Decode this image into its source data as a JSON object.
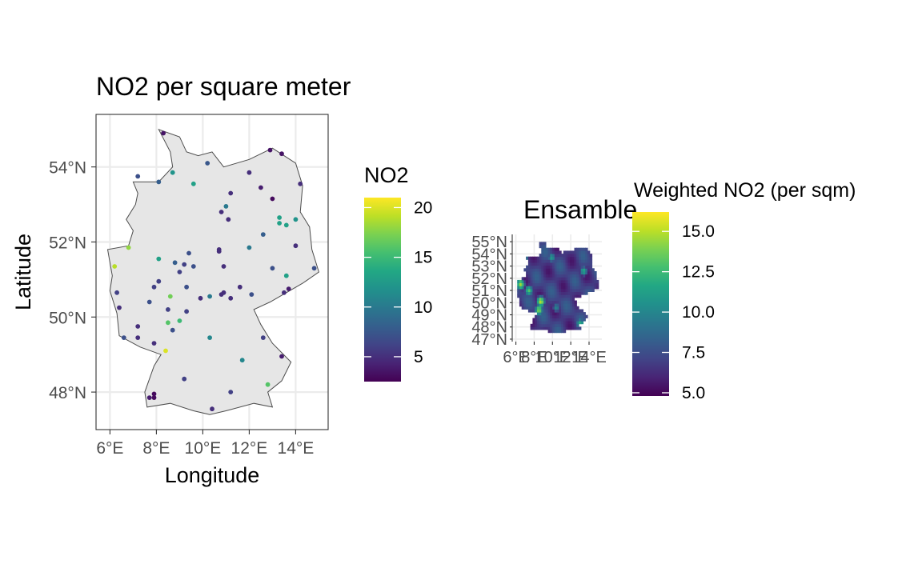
{
  "chart_data": [
    {
      "type": "scatter",
      "title": "NO2 per square meter",
      "xlabel": "Longitude",
      "ylabel": "Latitude",
      "xlim": [
        5.4,
        15.4
      ],
      "ylim": [
        47.0,
        55.4
      ],
      "grid": true,
      "x_ticks": [
        {
          "v": 6,
          "label": "6°E"
        },
        {
          "v": 8,
          "label": "8°E"
        },
        {
          "v": 10,
          "label": "10°E"
        },
        {
          "v": 12,
          "label": "12°E"
        },
        {
          "v": 14,
          "label": "14°E"
        }
      ],
      "y_ticks": [
        {
          "v": 48,
          "label": "48°N"
        },
        {
          "v": 50,
          "label": "50°N"
        },
        {
          "v": 52,
          "label": "52°N"
        },
        {
          "v": 54,
          "label": "54°N"
        }
      ],
      "legend": {
        "title": "NO2",
        "placement": "right",
        "range": [
          2.5,
          21
        ],
        "ticks": [
          {
            "v": 5,
            "label": "5"
          },
          {
            "v": 10,
            "label": "10"
          },
          {
            "v": 15,
            "label": "15"
          },
          {
            "v": 20,
            "label": "20"
          }
        ]
      },
      "border": [
        [
          8.1,
          55.0
        ],
        [
          9.0,
          54.8
        ],
        [
          9.3,
          54.4
        ],
        [
          9.8,
          54.3
        ],
        [
          10.4,
          54.4
        ],
        [
          10.9,
          54.0
        ],
        [
          12.0,
          54.2
        ],
        [
          13.0,
          54.5
        ],
        [
          14.0,
          54.1
        ],
        [
          14.3,
          53.5
        ],
        [
          14.2,
          52.8
        ],
        [
          14.6,
          52.4
        ],
        [
          14.7,
          51.8
        ],
        [
          15.0,
          51.2
        ],
        [
          14.3,
          50.9
        ],
        [
          12.9,
          50.4
        ],
        [
          12.2,
          50.2
        ],
        [
          12.5,
          49.8
        ],
        [
          13.0,
          49.3
        ],
        [
          13.8,
          48.8
        ],
        [
          13.4,
          48.3
        ],
        [
          12.8,
          48.0
        ],
        [
          13.0,
          47.6
        ],
        [
          12.2,
          47.7
        ],
        [
          11.0,
          47.5
        ],
        [
          10.3,
          47.4
        ],
        [
          9.6,
          47.5
        ],
        [
          8.6,
          47.7
        ],
        [
          7.6,
          47.6
        ],
        [
          7.5,
          48.0
        ],
        [
          7.9,
          48.7
        ],
        [
          8.2,
          49.0
        ],
        [
          7.3,
          49.2
        ],
        [
          6.4,
          49.5
        ],
        [
          6.3,
          50.1
        ],
        [
          6.0,
          50.7
        ],
        [
          6.1,
          51.1
        ],
        [
          5.9,
          51.8
        ],
        [
          6.8,
          51.9
        ],
        [
          7.0,
          52.3
        ],
        [
          6.7,
          52.6
        ],
        [
          7.1,
          53.0
        ],
        [
          7.2,
          53.3
        ],
        [
          7.0,
          53.6
        ],
        [
          8.1,
          53.6
        ],
        [
          8.7,
          54.0
        ],
        [
          8.6,
          54.4
        ],
        [
          8.1,
          55.0
        ]
      ],
      "points": [
        {
          "x": 8.3,
          "y": 54.9,
          "v": 3.5
        },
        {
          "x": 12.9,
          "y": 54.45,
          "v": 3.5
        },
        {
          "x": 13.4,
          "y": 54.35,
          "v": 3.5
        },
        {
          "x": 10.2,
          "y": 54.1,
          "v": 7.5
        },
        {
          "x": 8.7,
          "y": 53.85,
          "v": 12
        },
        {
          "x": 12.0,
          "y": 53.85,
          "v": 5
        },
        {
          "x": 7.2,
          "y": 53.75,
          "v": 7
        },
        {
          "x": 8.1,
          "y": 53.6,
          "v": 8
        },
        {
          "x": 9.6,
          "y": 53.55,
          "v": 13
        },
        {
          "x": 14.2,
          "y": 53.55,
          "v": 5
        },
        {
          "x": 12.5,
          "y": 53.45,
          "v": 4
        },
        {
          "x": 11.2,
          "y": 53.3,
          "v": 5
        },
        {
          "x": 13.0,
          "y": 53.15,
          "v": 3
        },
        {
          "x": 11.0,
          "y": 52.95,
          "v": 10
        },
        {
          "x": 10.8,
          "y": 52.8,
          "v": 5
        },
        {
          "x": 13.3,
          "y": 52.65,
          "v": 13
        },
        {
          "x": 11.1,
          "y": 52.6,
          "v": 5
        },
        {
          "x": 14.0,
          "y": 52.6,
          "v": 12
        },
        {
          "x": 13.3,
          "y": 52.5,
          "v": 13
        },
        {
          "x": 13.6,
          "y": 52.45,
          "v": 13
        },
        {
          "x": 12.6,
          "y": 52.2,
          "v": 8
        },
        {
          "x": 6.8,
          "y": 51.85,
          "v": 18
        },
        {
          "x": 14.0,
          "y": 51.9,
          "v": 5
        },
        {
          "x": 12.0,
          "y": 51.85,
          "v": 10
        },
        {
          "x": 10.7,
          "y": 51.8,
          "v": 5
        },
        {
          "x": 10.7,
          "y": 51.75,
          "v": 5
        },
        {
          "x": 9.4,
          "y": 51.7,
          "v": 7
        },
        {
          "x": 8.1,
          "y": 51.55,
          "v": 13
        },
        {
          "x": 8.8,
          "y": 51.45,
          "v": 8
        },
        {
          "x": 9.2,
          "y": 51.4,
          "v": 6
        },
        {
          "x": 10.9,
          "y": 51.35,
          "v": 5
        },
        {
          "x": 9.6,
          "y": 51.35,
          "v": 7
        },
        {
          "x": 6.2,
          "y": 51.35,
          "v": 19
        },
        {
          "x": 13.0,
          "y": 51.3,
          "v": 7
        },
        {
          "x": 14.8,
          "y": 51.3,
          "v": 7
        },
        {
          "x": 9.0,
          "y": 51.2,
          "v": 6
        },
        {
          "x": 13.6,
          "y": 51.1,
          "v": 13
        },
        {
          "x": 8.1,
          "y": 50.95,
          "v": 6
        },
        {
          "x": 7.9,
          "y": 50.8,
          "v": 6
        },
        {
          "x": 9.3,
          "y": 50.8,
          "v": 7
        },
        {
          "x": 11.6,
          "y": 50.8,
          "v": 5
        },
        {
          "x": 13.7,
          "y": 50.75,
          "v": 4
        },
        {
          "x": 13.5,
          "y": 50.65,
          "v": 5
        },
        {
          "x": 6.3,
          "y": 50.65,
          "v": 6
        },
        {
          "x": 10.9,
          "y": 50.65,
          "v": 5
        },
        {
          "x": 10.8,
          "y": 50.6,
          "v": 5
        },
        {
          "x": 10.3,
          "y": 50.55,
          "v": 10
        },
        {
          "x": 12.1,
          "y": 50.6,
          "v": 7
        },
        {
          "x": 8.6,
          "y": 50.55,
          "v": 17
        },
        {
          "x": 9.9,
          "y": 50.5,
          "v": 5
        },
        {
          "x": 11.2,
          "y": 50.5,
          "v": 5
        },
        {
          "x": 7.7,
          "y": 50.4,
          "v": 7
        },
        {
          "x": 6.4,
          "y": 50.25,
          "v": 5
        },
        {
          "x": 8.5,
          "y": 50.2,
          "v": 6
        },
        {
          "x": 9.3,
          "y": 50.15,
          "v": 6
        },
        {
          "x": 9.0,
          "y": 49.9,
          "v": 15
        },
        {
          "x": 8.5,
          "y": 49.85,
          "v": 16
        },
        {
          "x": 7.2,
          "y": 49.75,
          "v": 5
        },
        {
          "x": 8.7,
          "y": 49.65,
          "v": 7
        },
        {
          "x": 6.6,
          "y": 49.45,
          "v": 7
        },
        {
          "x": 7.2,
          "y": 49.45,
          "v": 5
        },
        {
          "x": 10.3,
          "y": 49.45,
          "v": 11
        },
        {
          "x": 12.6,
          "y": 49.45,
          "v": 6
        },
        {
          "x": 7.9,
          "y": 49.3,
          "v": 5
        },
        {
          "x": 8.4,
          "y": 49.1,
          "v": 20
        },
        {
          "x": 13.4,
          "y": 48.95,
          "v": 4
        },
        {
          "x": 11.7,
          "y": 48.85,
          "v": 11
        },
        {
          "x": 9.2,
          "y": 48.35,
          "v": 6
        },
        {
          "x": 12.8,
          "y": 48.2,
          "v": 16
        },
        {
          "x": 11.2,
          "y": 48.0,
          "v": 6
        },
        {
          "x": 7.9,
          "y": 47.95,
          "v": 3
        },
        {
          "x": 7.7,
          "y": 47.85,
          "v": 4
        },
        {
          "x": 7.9,
          "y": 47.85,
          "v": 3
        },
        {
          "x": 10.4,
          "y": 47.55,
          "v": 5
        }
      ]
    },
    {
      "type": "heatmap",
      "title": "Ensamble",
      "xlim": [
        5.6,
        15.4
      ],
      "ylim": [
        46.8,
        55.6
      ],
      "grid": true,
      "x_ticks": [
        {
          "v": 6,
          "label": "6°E"
        },
        {
          "v": 8,
          "label": "8°E"
        },
        {
          "v": 10,
          "label": "10°E"
        },
        {
          "v": 12,
          "label": "12°E"
        },
        {
          "v": 14,
          "label": "14°E"
        }
      ],
      "y_ticks": [
        {
          "v": 47,
          "label": "47°N"
        },
        {
          "v": 48,
          "label": "48°N"
        },
        {
          "v": 49,
          "label": "49°N"
        },
        {
          "v": 50,
          "label": "50°N"
        },
        {
          "v": 51,
          "label": "51°N"
        },
        {
          "v": 52,
          "label": "52°N"
        },
        {
          "v": 53,
          "label": "53°N"
        },
        {
          "v": 54,
          "label": "54°N"
        },
        {
          "v": 55,
          "label": "55°N"
        }
      ],
      "legend": {
        "title": "Weighted NO2 (per sqm)",
        "placement": "right",
        "range": [
          4.8,
          16.2
        ],
        "ticks": [
          {
            "v": 5,
            "label": "5.0"
          },
          {
            "v": 7.5,
            "label": "7.5"
          },
          {
            "v": 10,
            "label": "10.0"
          },
          {
            "v": 12.5,
            "label": "12.5"
          },
          {
            "v": 15,
            "label": "15.0"
          }
        ]
      },
      "value_range": [
        5,
        16
      ],
      "hotspots": [
        {
          "x": 6.4,
          "y": 51.4,
          "v": 14.5
        },
        {
          "x": 7.3,
          "y": 50.9,
          "v": 13.0
        },
        {
          "x": 8.6,
          "y": 50.0,
          "v": 15.0
        },
        {
          "x": 8.4,
          "y": 49.3,
          "v": 14.0
        },
        {
          "x": 6.8,
          "y": 53.4,
          "v": 12.0
        },
        {
          "x": 9.8,
          "y": 53.6,
          "v": 11.0
        },
        {
          "x": 13.3,
          "y": 52.5,
          "v": 11.5
        },
        {
          "x": 12.9,
          "y": 48.2,
          "v": 12.0
        },
        {
          "x": 10.3,
          "y": 49.5,
          "v": 10.0
        }
      ]
    }
  ]
}
